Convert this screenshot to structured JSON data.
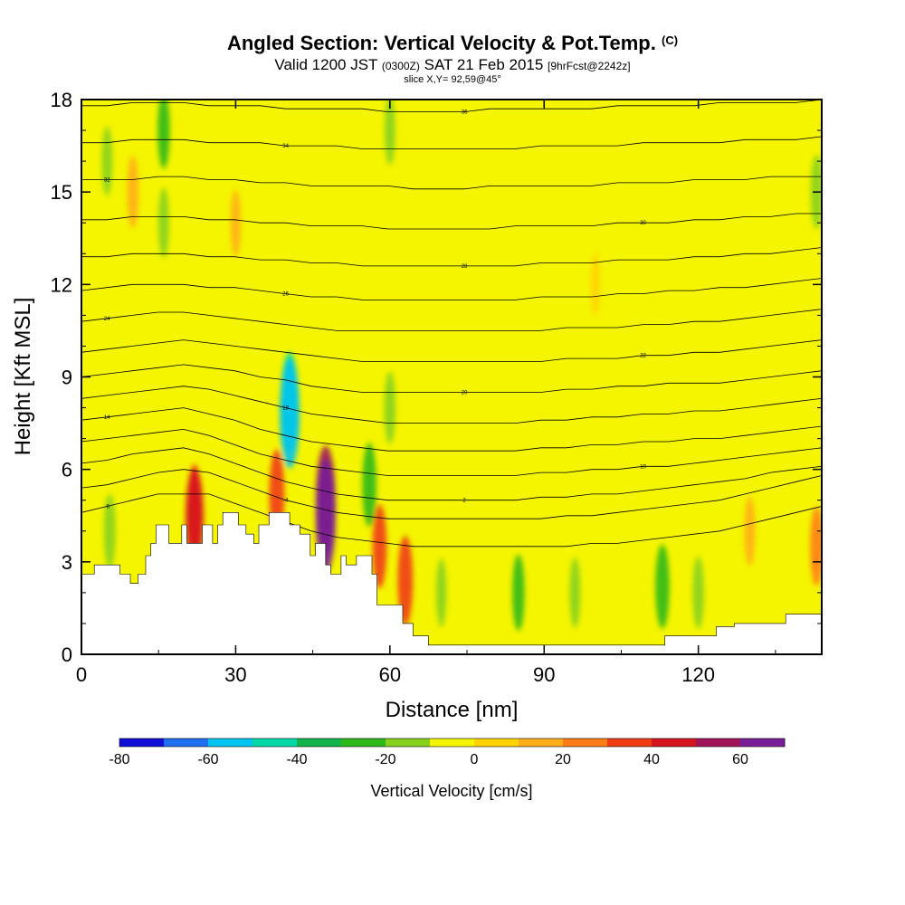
{
  "title": {
    "main": "Angled Section: Vertical Velocity & Pot.Temp.",
    "main_unit": "(C)",
    "valid_prefix": "Valid 1200 JST",
    "valid_utc": "(0300Z)",
    "valid_date": "SAT 21 Feb 2015",
    "forecast": "[9hrFcst@2242z]",
    "slice": "slice X,Y= 92,59@45°"
  },
  "chart_data": {
    "type": "heatmap",
    "xlabel": "Distance [nm]",
    "ylabel": "Height [Kft MSL]",
    "xlim": [
      0,
      144
    ],
    "ylim": [
      0,
      18
    ],
    "x_ticks": [
      "0",
      "30",
      "60",
      "90",
      "120"
    ],
    "x_tick_values": [
      0,
      30,
      60,
      90,
      120
    ],
    "y_ticks": [
      "0",
      "3",
      "6",
      "9",
      "12",
      "15",
      "18"
    ],
    "y_tick_values": [
      0,
      3,
      6,
      9,
      12,
      15,
      18
    ],
    "terrain": [
      [
        0,
        2.6
      ],
      [
        2.5,
        2.6
      ],
      [
        2.5,
        2.9
      ],
      [
        7.5,
        2.9
      ],
      [
        7.5,
        2.6
      ],
      [
        9.5,
        2.6
      ],
      [
        9.5,
        2.3
      ],
      [
        11,
        2.3
      ],
      [
        11,
        2.6
      ],
      [
        12.5,
        2.6
      ],
      [
        12.5,
        3.2
      ],
      [
        13.5,
        3.2
      ],
      [
        13.5,
        3.6
      ],
      [
        14.5,
        3.6
      ],
      [
        14.5,
        4.2
      ],
      [
        17,
        4.2
      ],
      [
        17,
        3.6
      ],
      [
        19.5,
        3.6
      ],
      [
        19.5,
        4.2
      ],
      [
        20.5,
        4.2
      ],
      [
        20.5,
        3.6
      ],
      [
        23.5,
        3.6
      ],
      [
        23.5,
        4.2
      ],
      [
        25.5,
        4.2
      ],
      [
        25.5,
        3.6
      ],
      [
        26.5,
        3.6
      ],
      [
        26.5,
        4.2
      ],
      [
        27.5,
        4.2
      ],
      [
        27.5,
        4.6
      ],
      [
        30.5,
        4.6
      ],
      [
        30.5,
        4.2
      ],
      [
        32,
        4.2
      ],
      [
        32,
        3.9
      ],
      [
        33.5,
        3.9
      ],
      [
        33.5,
        3.6
      ],
      [
        34.5,
        3.6
      ],
      [
        34.5,
        4.2
      ],
      [
        36.5,
        4.2
      ],
      [
        36.5,
        4.6
      ],
      [
        40.5,
        4.6
      ],
      [
        40.5,
        4.2
      ],
      [
        42.5,
        4.2
      ],
      [
        42.5,
        3.9
      ],
      [
        44.5,
        3.9
      ],
      [
        44.5,
        3.2
      ],
      [
        45.5,
        3.2
      ],
      [
        45.5,
        3.6
      ],
      [
        47.5,
        3.6
      ],
      [
        47.5,
        2.9
      ],
      [
        48.5,
        2.9
      ],
      [
        48.5,
        2.6
      ],
      [
        50.5,
        2.6
      ],
      [
        50.5,
        3.2
      ],
      [
        51.5,
        3.2
      ],
      [
        51.5,
        2.9
      ],
      [
        53.5,
        2.9
      ],
      [
        53.5,
        3.2
      ],
      [
        56.5,
        3.2
      ],
      [
        56.5,
        2.6
      ],
      [
        57.5,
        2.6
      ],
      [
        57.5,
        1.6
      ],
      [
        62.5,
        1.6
      ],
      [
        62.5,
        1.0
      ],
      [
        64.5,
        1.0
      ],
      [
        64.5,
        0.6
      ],
      [
        67.5,
        0.6
      ],
      [
        67.5,
        0.3
      ],
      [
        113.5,
        0.3
      ],
      [
        113.5,
        0.6
      ],
      [
        123.5,
        0.6
      ],
      [
        123.5,
        0.9
      ],
      [
        127,
        0.9
      ],
      [
        127,
        1.0
      ],
      [
        137,
        1.0
      ],
      [
        137,
        1.3
      ],
      [
        144,
        1.3
      ]
    ],
    "velocity_features": [
      {
        "x": 22,
        "y": 4.8,
        "w": 30
      },
      {
        "x": 22,
        "y": 4.4,
        "w": 48
      },
      {
        "x": 38,
        "y": 5.2,
        "w": 35
      },
      {
        "x": 47.5,
        "y": 5.0,
        "w": 55
      },
      {
        "x": 47.5,
        "y": 4.5,
        "w": 60
      },
      {
        "x": 58,
        "y": 3.5,
        "w": 30
      },
      {
        "x": 63,
        "y": 2.4,
        "w": 35
      },
      {
        "x": 10,
        "y": 15,
        "w": 18
      },
      {
        "x": 30,
        "y": 14,
        "w": 12
      },
      {
        "x": 100,
        "y": 12,
        "w": 8
      },
      {
        "x": 130,
        "y": 4,
        "w": 15
      },
      {
        "x": 143,
        "y": 3.5,
        "w": 25
      },
      {
        "x": 40.5,
        "y": 8.2,
        "w": -45
      },
      {
        "x": 40.5,
        "y": 7.8,
        "w": -55
      },
      {
        "x": 16,
        "y": 17,
        "w": -22
      },
      {
        "x": 16,
        "y": 14,
        "w": -16
      },
      {
        "x": 60,
        "y": 17,
        "w": -15
      },
      {
        "x": 60,
        "y": 8,
        "w": -18
      },
      {
        "x": 56,
        "y": 5.5,
        "w": -30
      },
      {
        "x": 70,
        "y": 2,
        "w": -14
      },
      {
        "x": 85,
        "y": 2,
        "w": -22
      },
      {
        "x": 96,
        "y": 2,
        "w": -16
      },
      {
        "x": 113,
        "y": 2.2,
        "w": -30
      },
      {
        "x": 120,
        "y": 2,
        "w": -18
      },
      {
        "x": 5.5,
        "y": 4,
        "w": -20
      },
      {
        "x": 5,
        "y": 16,
        "w": -15
      },
      {
        "x": 143,
        "y": 15,
        "w": -20
      }
    ],
    "isentropes": [
      {
        "label": "-6",
        "y": [
          4.6,
          4.8,
          5.0,
          5.2,
          5.2,
          5.2,
          4.9,
          4.6,
          4.3,
          4.0,
          3.8,
          3.7,
          3.6,
          3.5,
          3.5,
          3.5,
          3.5,
          3.5,
          3.5,
          3.5,
          3.6,
          3.6,
          3.7,
          3.8,
          3.9,
          4.0,
          4.2,
          4.4,
          4.6,
          4.8
        ]
      },
      {
        "label": "-4",
        "y": [
          5.4,
          5.5,
          5.7,
          5.9,
          6.0,
          5.9,
          5.6,
          5.3,
          5.0,
          4.8,
          4.6,
          4.5,
          4.4,
          4.4,
          4.4,
          4.4,
          4.4,
          4.4,
          4.4,
          4.5,
          4.5,
          4.6,
          4.7,
          4.8,
          4.9,
          5.0,
          5.2,
          5.4,
          5.6,
          5.8
        ]
      },
      {
        "label": "2",
        "y": [
          6.2,
          6.3,
          6.5,
          6.6,
          6.7,
          6.5,
          6.2,
          5.9,
          5.6,
          5.4,
          5.2,
          5.1,
          5.0,
          5.0,
          5.0,
          5.0,
          5.0,
          5.0,
          5.1,
          5.1,
          5.2,
          5.2,
          5.3,
          5.4,
          5.5,
          5.6,
          5.7,
          5.9,
          6.0,
          6.1
        ]
      },
      {
        "label": "10",
        "y": [
          6.9,
          7.0,
          7.1,
          7.2,
          7.3,
          7.1,
          6.8,
          6.5,
          6.3,
          6.1,
          6.0,
          5.9,
          5.8,
          5.8,
          5.8,
          5.8,
          5.8,
          5.8,
          5.9,
          5.9,
          6.0,
          6.0,
          6.1,
          6.1,
          6.2,
          6.3,
          6.4,
          6.5,
          6.6,
          6.7
        ]
      },
      {
        "label": "14",
        "y": [
          7.6,
          7.7,
          7.8,
          7.9,
          8.0,
          7.8,
          7.6,
          7.3,
          7.1,
          6.9,
          6.8,
          6.7,
          6.6,
          6.6,
          6.6,
          6.6,
          6.6,
          6.6,
          6.7,
          6.7,
          6.8,
          6.8,
          6.9,
          6.9,
          7.0,
          7.0,
          7.1,
          7.2,
          7.3,
          7.4
        ]
      },
      {
        "label": "18",
        "y": [
          8.3,
          8.4,
          8.5,
          8.6,
          8.7,
          8.6,
          8.4,
          8.2,
          8.0,
          7.8,
          7.7,
          7.6,
          7.5,
          7.5,
          7.5,
          7.5,
          7.5,
          7.5,
          7.6,
          7.6,
          7.7,
          7.7,
          7.8,
          7.8,
          7.9,
          7.9,
          8.0,
          8.1,
          8.2,
          8.3
        ]
      },
      {
        "label": "20",
        "y": [
          9.0,
          9.1,
          9.2,
          9.3,
          9.4,
          9.3,
          9.2,
          9.0,
          8.9,
          8.7,
          8.6,
          8.5,
          8.5,
          8.5,
          8.5,
          8.5,
          8.5,
          8.5,
          8.5,
          8.6,
          8.6,
          8.7,
          8.7,
          8.8,
          8.8,
          8.8,
          8.9,
          9.0,
          9.1,
          9.2
        ]
      },
      {
        "label": "22",
        "y": [
          9.8,
          9.9,
          10.0,
          10.1,
          10.2,
          10.1,
          10.0,
          9.9,
          9.8,
          9.7,
          9.6,
          9.5,
          9.5,
          9.5,
          9.5,
          9.5,
          9.5,
          9.5,
          9.5,
          9.6,
          9.6,
          9.6,
          9.7,
          9.7,
          9.8,
          9.8,
          9.9,
          10.0,
          10.1,
          10.2
        ]
      },
      {
        "label": "24",
        "y": [
          10.8,
          10.9,
          11.0,
          11.1,
          11.1,
          11.0,
          10.9,
          10.8,
          10.7,
          10.6,
          10.5,
          10.5,
          10.5,
          10.5,
          10.5,
          10.5,
          10.5,
          10.5,
          10.5,
          10.6,
          10.6,
          10.6,
          10.7,
          10.7,
          10.8,
          10.8,
          10.9,
          11.0,
          11.1,
          11.2
        ]
      },
      {
        "label": "26",
        "y": [
          11.8,
          11.9,
          12.0,
          12.0,
          12.0,
          11.9,
          11.9,
          11.8,
          11.7,
          11.6,
          11.6,
          11.5,
          11.5,
          11.5,
          11.5,
          11.5,
          11.5,
          11.5,
          11.6,
          11.6,
          11.6,
          11.7,
          11.7,
          11.8,
          11.8,
          11.9,
          11.9,
          12.0,
          12.1,
          12.2
        ]
      },
      {
        "label": "28",
        "y": [
          12.9,
          12.9,
          13.0,
          13.0,
          13.0,
          12.9,
          12.9,
          12.8,
          12.8,
          12.7,
          12.7,
          12.6,
          12.6,
          12.6,
          12.6,
          12.6,
          12.6,
          12.6,
          12.7,
          12.7,
          12.7,
          12.8,
          12.8,
          12.8,
          12.9,
          12.9,
          13.0,
          13.0,
          13.1,
          13.2
        ]
      },
      {
        "label": "30",
        "y": [
          14.1,
          14.1,
          14.2,
          14.2,
          14.2,
          14.1,
          14.1,
          14.0,
          14.0,
          13.9,
          13.9,
          13.9,
          13.8,
          13.8,
          13.8,
          13.8,
          13.8,
          13.9,
          13.9,
          13.9,
          13.9,
          14.0,
          14.0,
          14.0,
          14.1,
          14.1,
          14.2,
          14.2,
          14.3,
          14.3
        ]
      },
      {
        "label": "32",
        "y": [
          15.4,
          15.4,
          15.4,
          15.5,
          15.5,
          15.4,
          15.4,
          15.3,
          15.3,
          15.2,
          15.2,
          15.2,
          15.2,
          15.1,
          15.1,
          15.1,
          15.2,
          15.2,
          15.2,
          15.2,
          15.2,
          15.3,
          15.3,
          15.3,
          15.4,
          15.4,
          15.4,
          15.5,
          15.5,
          15.5
        ]
      },
      {
        "label": "34",
        "y": [
          16.6,
          16.6,
          16.7,
          16.7,
          16.7,
          16.6,
          16.6,
          16.6,
          16.5,
          16.5,
          16.5,
          16.4,
          16.4,
          16.4,
          16.4,
          16.4,
          16.4,
          16.4,
          16.5,
          16.5,
          16.5,
          16.5,
          16.6,
          16.6,
          16.6,
          16.6,
          16.7,
          16.7,
          16.7,
          16.8
        ]
      },
      {
        "label": "36",
        "y": [
          17.8,
          17.8,
          17.9,
          17.9,
          17.9,
          17.8,
          17.8,
          17.8,
          17.7,
          17.7,
          17.7,
          17.7,
          17.6,
          17.6,
          17.6,
          17.6,
          17.7,
          17.7,
          17.7,
          17.7,
          17.7,
          17.8,
          17.8,
          17.8,
          17.8,
          17.9,
          17.9,
          17.9,
          17.9,
          18.0
        ]
      }
    ],
    "colorbar": {
      "label": "Vertical Velocity [cm/s]",
      "ticks": [
        "-80",
        "-60",
        "-40",
        "-20",
        "0",
        "20",
        "40",
        "60"
      ],
      "tick_values": [
        -80,
        -60,
        -40,
        -20,
        0,
        20,
        40,
        60
      ],
      "range": [
        -80,
        70
      ],
      "colors": [
        "#0f0fd8",
        "#1f6ff0",
        "#00c4f0",
        "#00d8a8",
        "#14b44c",
        "#2eb81a",
        "#86d01e",
        "#f5f500",
        "#ffd200",
        "#ffad1a",
        "#ff7d14",
        "#f03c14",
        "#d7141e",
        "#a0145a",
        "#781e96"
      ]
    }
  }
}
